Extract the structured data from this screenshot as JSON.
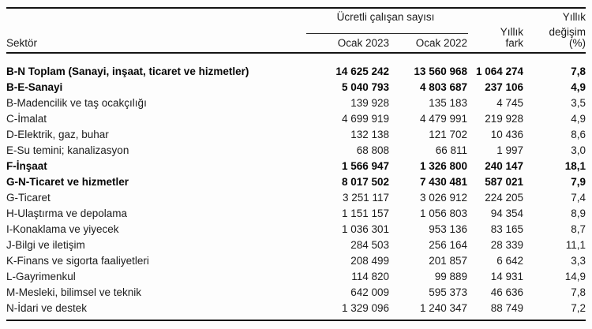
{
  "header": {
    "group_title": "Ücretli çalışan sayısı",
    "sector_label": "Sektör",
    "jan2023_label": "Ocak 2023",
    "jan2022_label": "Ocak 2022",
    "diff_label_line1": "Yıllık",
    "diff_label_line2": "fark",
    "pct_label_line1": "Yıllık",
    "pct_label_line2": "değişim",
    "pct_label_line3": "(%)"
  },
  "table": {
    "rows": [
      {
        "sector": "B-N Toplam (Sanayi, inşaat, ticaret ve hizmetler)",
        "jan2023": "14 625 242",
        "jan2022": "13 560 968",
        "diff": "1 064 274",
        "pct": "7,8",
        "bold": true
      },
      {
        "sector": "B-E-Sanayi",
        "jan2023": "5 040 793",
        "jan2022": "4 803 687",
        "diff": "237 106",
        "pct": "4,9",
        "bold": true
      },
      {
        "sector": "B-Madencilik ve taş ocakçılığı",
        "jan2023": "139 928",
        "jan2022": "135 183",
        "diff": "4 745",
        "pct": "3,5",
        "bold": false
      },
      {
        "sector": "C-İmalat",
        "jan2023": "4 699 919",
        "jan2022": "4 479 991",
        "diff": "219 928",
        "pct": "4,9",
        "bold": false
      },
      {
        "sector": "D-Elektrik, gaz, buhar",
        "jan2023": "132 138",
        "jan2022": "121 702",
        "diff": "10 436",
        "pct": "8,6",
        "bold": false
      },
      {
        "sector": "E-Su temini; kanalizasyon",
        "jan2023": "68 808",
        "jan2022": "66 811",
        "diff": "1 997",
        "pct": "3,0",
        "bold": false
      },
      {
        "sector": "F-İnşaat",
        "jan2023": "1 566 947",
        "jan2022": "1 326 800",
        "diff": "240 147",
        "pct": "18,1",
        "bold": true
      },
      {
        "sector": "G-N-Ticaret ve hizmetler",
        "jan2023": "8 017 502",
        "jan2022": "7 430 481",
        "diff": "587 021",
        "pct": "7,9",
        "bold": true
      },
      {
        "sector": "G-Ticaret",
        "jan2023": "3 251 117",
        "jan2022": "3 026 912",
        "diff": "224 205",
        "pct": "7,4",
        "bold": false
      },
      {
        "sector": "H-Ulaştırma ve depolama",
        "jan2023": "1 151 157",
        "jan2022": "1 056 803",
        "diff": "94 354",
        "pct": "8,9",
        "bold": false
      },
      {
        "sector": "I-Konaklama ve yiyecek",
        "jan2023": "1 036 301",
        "jan2022": "953 136",
        "diff": "83 165",
        "pct": "8,7",
        "bold": false
      },
      {
        "sector": "J-Bilgi ve iletişim",
        "jan2023": "284 503",
        "jan2022": "256 164",
        "diff": "28 339",
        "pct": "11,1",
        "bold": false
      },
      {
        "sector": "K-Finans ve sigorta faaliyetleri",
        "jan2023": "208 499",
        "jan2022": "201 857",
        "diff": "6 642",
        "pct": "3,3",
        "bold": false
      },
      {
        "sector": "L-Gayrimenkul",
        "jan2023": "114 820",
        "jan2022": "99 889",
        "diff": "14 931",
        "pct": "14,9",
        "bold": false
      },
      {
        "sector": "M-Mesleki, bilimsel ve teknik",
        "jan2023": "642 009",
        "jan2022": "595 373",
        "diff": "46 636",
        "pct": "7,8",
        "bold": false
      },
      {
        "sector": "N-İdari ve destek",
        "jan2023": "1 329 096",
        "jan2022": "1 240 347",
        "diff": "88 749",
        "pct": "7,2",
        "bold": false
      }
    ]
  },
  "chart_data": {
    "type": "table",
    "title": "Ücretli çalışan sayısı",
    "columns": [
      "Sektör",
      "Ocak 2023",
      "Ocak 2022",
      "Yıllık fark",
      "Yıllık değişim (%)"
    ],
    "rows": [
      [
        "B-N Toplam (Sanayi, inşaat, ticaret ve hizmetler)",
        14625242,
        13560968,
        1064274,
        7.8
      ],
      [
        "B-E-Sanayi",
        5040793,
        4803687,
        237106,
        4.9
      ],
      [
        "B-Madencilik ve taş ocakçılığı",
        139928,
        135183,
        4745,
        3.5
      ],
      [
        "C-İmalat",
        4699919,
        4479991,
        219928,
        4.9
      ],
      [
        "D-Elektrik, gaz, buhar",
        132138,
        121702,
        10436,
        8.6
      ],
      [
        "E-Su temini; kanalizasyon",
        68808,
        66811,
        1997,
        3.0
      ],
      [
        "F-İnşaat",
        1566947,
        1326800,
        240147,
        18.1
      ],
      [
        "G-N-Ticaret ve hizmetler",
        8017502,
        7430481,
        587021,
        7.9
      ],
      [
        "G-Ticaret",
        3251117,
        3026912,
        224205,
        7.4
      ],
      [
        "H-Ulaştırma ve depolama",
        1151157,
        1056803,
        94354,
        8.9
      ],
      [
        "I-Konaklama ve yiyecek",
        1036301,
        953136,
        83165,
        8.7
      ],
      [
        "J-Bilgi ve iletişim",
        284503,
        256164,
        28339,
        11.1
      ],
      [
        "K-Finans ve sigorta faaliyetleri",
        208499,
        201857,
        6642,
        3.3
      ],
      [
        "L-Gayrimenkul",
        114820,
        99889,
        14931,
        14.9
      ],
      [
        "M-Mesleki, bilimsel ve teknik",
        642009,
        595373,
        46636,
        7.8
      ],
      [
        "N-İdari ve destek",
        1329096,
        1240347,
        88749,
        7.2
      ]
    ]
  }
}
